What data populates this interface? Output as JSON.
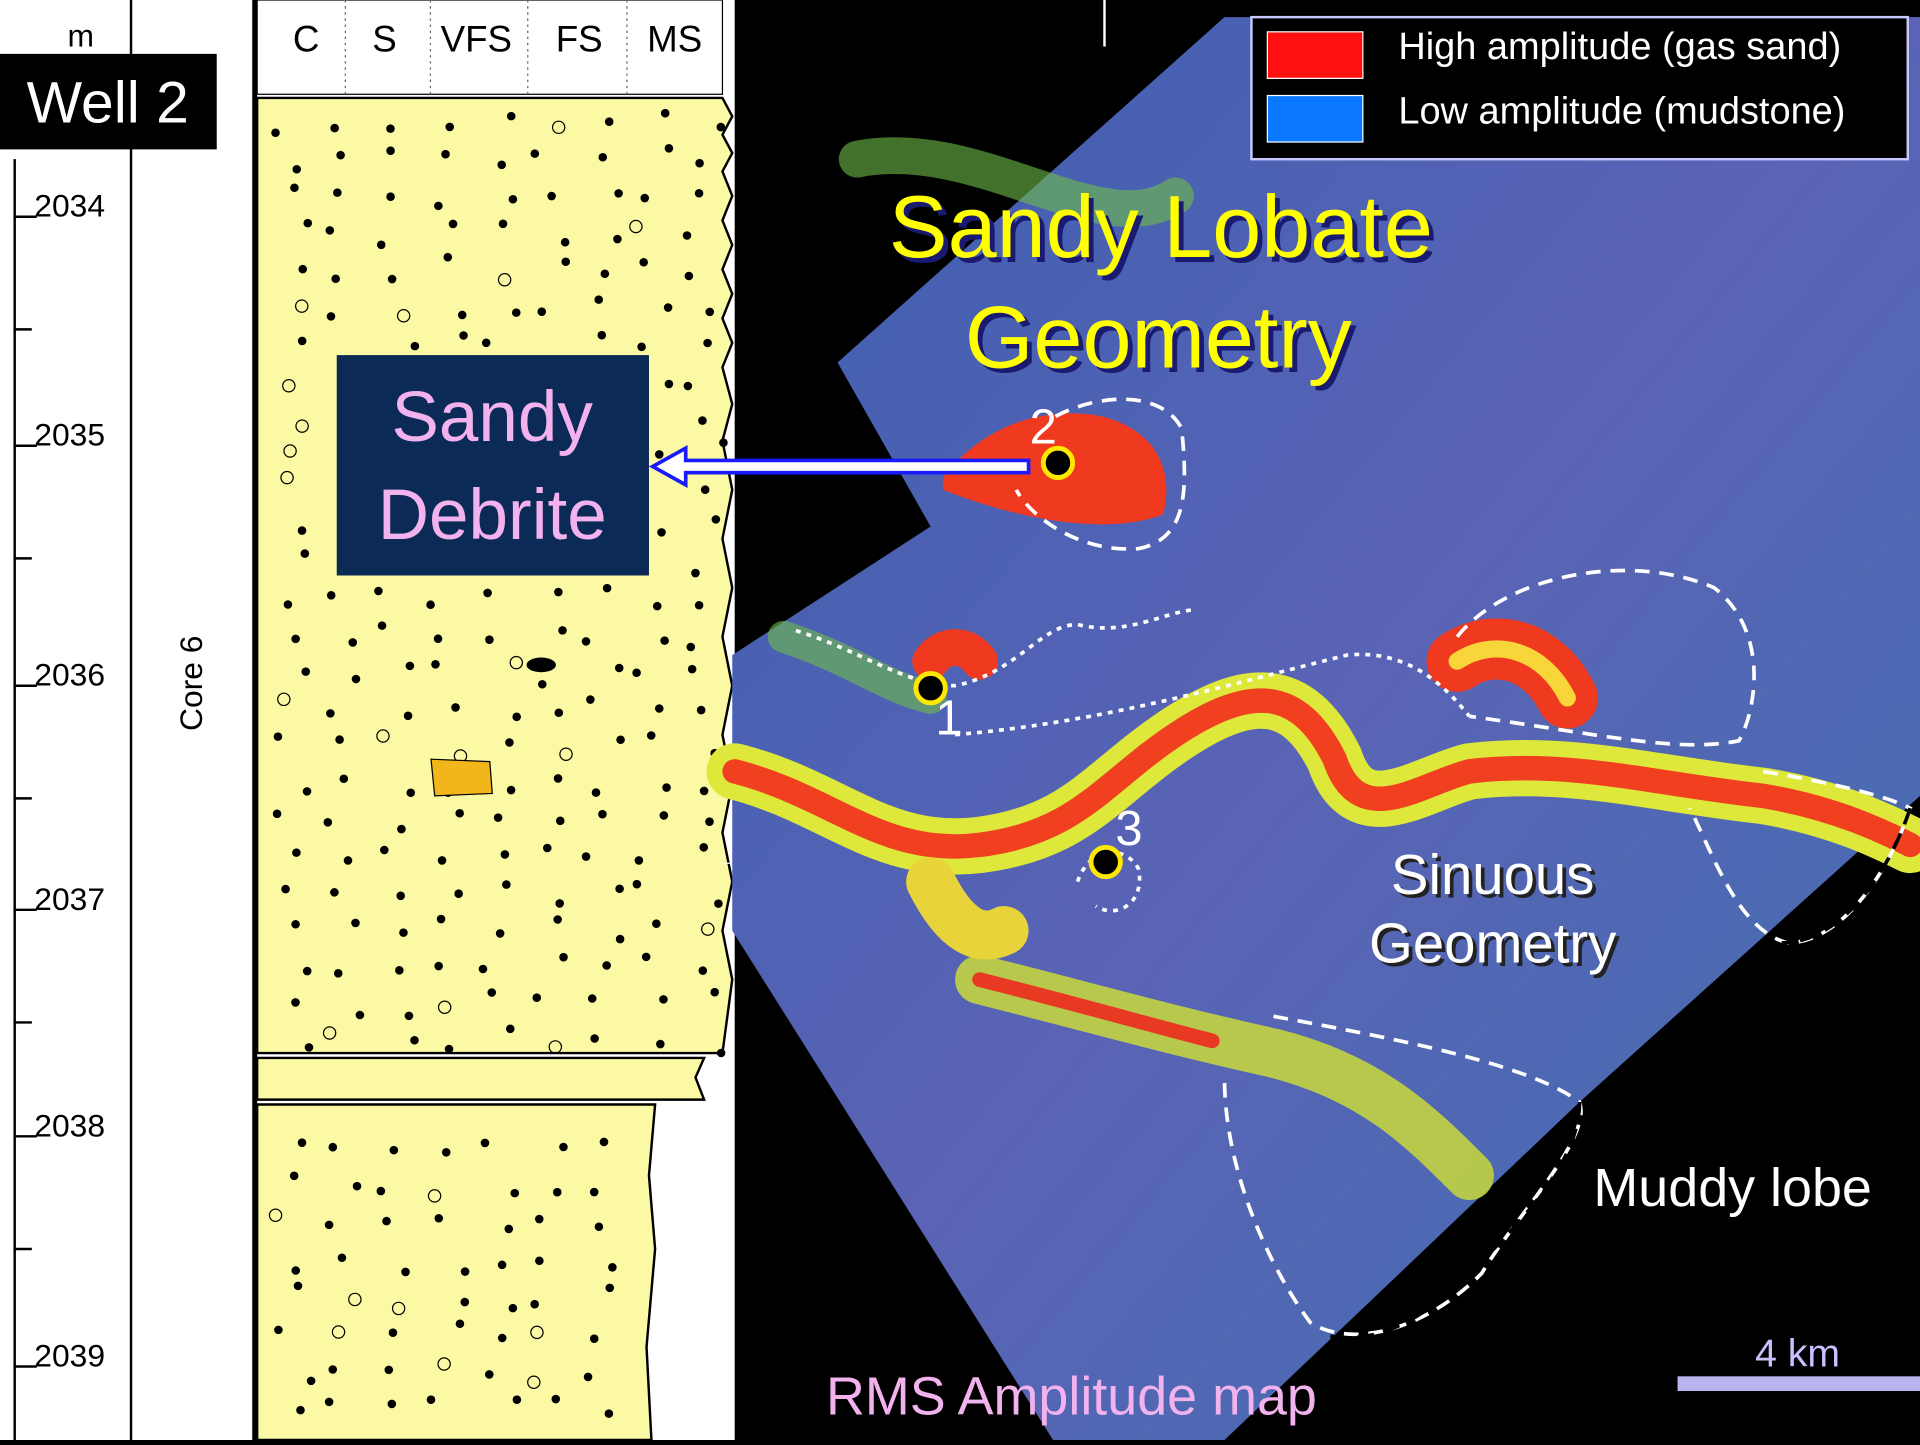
{
  "log": {
    "unit": "m",
    "well": "Well 2",
    "grain_sizes": [
      "C",
      "S",
      "VFS",
      "FS",
      "MS"
    ],
    "depths": [
      "2034",
      "2035",
      "2036",
      "2037",
      "2038",
      "2039"
    ],
    "core": "Core 6"
  },
  "map": {
    "title_lines": [
      "Sandy Lobate",
      "Geometry"
    ],
    "callout_lines": [
      "Sandy",
      "Debrite"
    ],
    "wells": [
      "2",
      "1",
      "3"
    ],
    "sinuous_lines": [
      "Sinuous",
      "Geometry"
    ],
    "muddy": "Muddy lobe",
    "caption": "RMS Amplitude map",
    "scale": "4 km"
  },
  "legend": [
    {
      "label": "High amplitude (gas sand)",
      "color": "#ff1010"
    },
    {
      "label": "Low amplitude (mudstone)",
      "color": "#0a78ff"
    }
  ]
}
